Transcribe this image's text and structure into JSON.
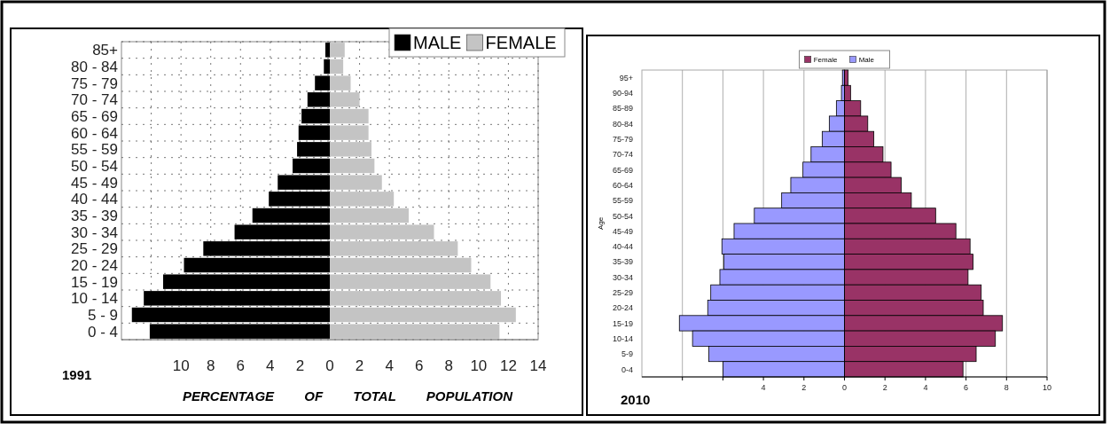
{
  "chart_data": [
    {
      "type": "bar",
      "orientation": "horizontal",
      "stacked": true,
      "xlabel": "PERCENTAGE OF TOTAL POPULATION",
      "annotations": [
        "1991"
      ],
      "categories": [
        "85+",
        "80 - 84",
        "75 - 79",
        "70 - 74",
        "65 - 69",
        "60 - 64",
        "55 - 59",
        "50 - 54",
        "45 - 49",
        "40 - 44",
        "35 - 39",
        "30 - 34",
        "25 - 29",
        "20 - 24",
        "15 - 19",
        "10 - 14",
        "5 - 9",
        "0 - 4"
      ],
      "series": [
        {
          "name": "MALE",
          "color": "#000000",
          "values": [
            -0.3,
            -0.4,
            -1.0,
            -1.5,
            -1.9,
            -2.1,
            -2.2,
            -2.5,
            -3.5,
            -4.1,
            -5.2,
            -6.4,
            -8.5,
            -9.8,
            -11.2,
            -12.5,
            -13.3,
            -12.1
          ]
        },
        {
          "name": "FEMALE",
          "color": "#c4c4c4",
          "values": [
            1.0,
            0.9,
            1.4,
            2.0,
            2.6,
            2.6,
            2.8,
            3.0,
            3.5,
            4.3,
            5.3,
            7.0,
            8.6,
            9.5,
            10.8,
            11.5,
            12.5,
            11.4
          ]
        }
      ],
      "xlim": [
        -14,
        14
      ],
      "xticks": [
        {
          "value": -12,
          "label": null
        },
        {
          "value": -10,
          "label": "10"
        },
        {
          "value": -8,
          "label": "8"
        },
        {
          "value": -6,
          "label": "6"
        },
        {
          "value": -4,
          "label": "4"
        },
        {
          "value": -2,
          "label": "2"
        },
        0,
        2,
        4,
        6,
        8,
        10,
        12,
        14
      ],
      "grid": true,
      "legend": "top right"
    },
    {
      "type": "bar",
      "orientation": "horizontal",
      "stacked": true,
      "ylabel": "Age",
      "annotations": [
        "2010"
      ],
      "categories": [
        "95+",
        "90-94",
        "85-89",
        "80-84",
        "75-79",
        "70-74",
        "65-69",
        "60-64",
        "55-59",
        "50-54",
        "45-49",
        "40-44",
        "35-39",
        "30-34",
        "25-29",
        "20-24",
        "15-19",
        "10-14",
        "5-9",
        "0-4"
      ],
      "series": [
        {
          "name": "Female",
          "color": "#993366",
          "values": [
            0.18,
            0.3,
            0.8,
            1.15,
            1.45,
            1.9,
            2.3,
            2.8,
            3.3,
            4.5,
            5.5,
            6.2,
            6.35,
            6.1,
            6.75,
            6.85,
            7.8,
            7.45,
            6.5,
            5.85
          ]
        },
        {
          "name": "Male",
          "color": "#9999ff",
          "values": [
            -0.1,
            -0.15,
            -0.4,
            -0.75,
            -1.1,
            -1.65,
            -2.05,
            -2.65,
            -3.1,
            -4.45,
            -5.45,
            -6.05,
            -5.95,
            -6.15,
            -6.6,
            -6.75,
            -8.15,
            -7.5,
            -6.7,
            -6.0
          ]
        }
      ],
      "xlim": [
        -10,
        10
      ],
      "xticks": [
        {
          "value": -8,
          "label": null
        },
        {
          "value": -6,
          "label": null
        },
        {
          "value": -4,
          "label": "4"
        },
        {
          "value": -2,
          "label": "2"
        },
        0,
        2,
        4,
        6,
        8,
        10
      ],
      "grid": "x",
      "legend": "top"
    }
  ]
}
